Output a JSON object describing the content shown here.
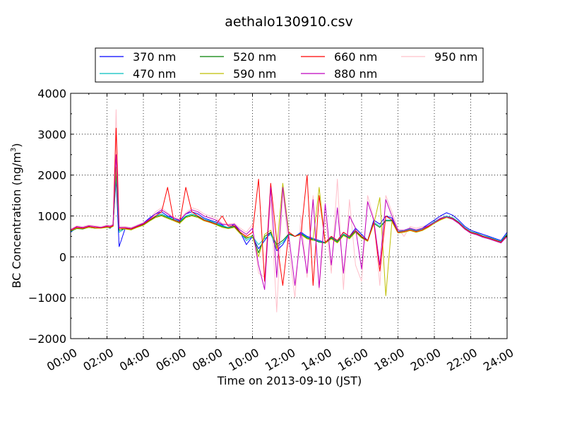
{
  "chart_data": {
    "type": "line",
    "title": "aethalo130910.csv",
    "xlabel": "Time on 2013-09-10 (JST)",
    "ylabel_main": "BC Concentration (ng/m",
    "ylabel_sup": "3",
    "ylabel_close": ")",
    "xlim": [
      "00:00",
      "24:00"
    ],
    "ylim": [
      -2000,
      4000
    ],
    "x_ticks": [
      "00:00",
      "02:00",
      "04:00",
      "06:00",
      "08:00",
      "10:00",
      "12:00",
      "14:00",
      "16:00",
      "18:00",
      "20:00",
      "22:00",
      "24:00"
    ],
    "y_ticks": [
      "4000",
      "3000",
      "2000",
      "1000",
      "0",
      "−1000",
      "−2000"
    ],
    "grid": true,
    "legend_position": "top",
    "x": [
      "00:00",
      "00:20",
      "00:40",
      "01:00",
      "01:20",
      "01:40",
      "02:00",
      "02:10",
      "02:20",
      "02:30",
      "02:40",
      "03:00",
      "03:20",
      "03:40",
      "04:00",
      "04:20",
      "04:40",
      "05:00",
      "05:20",
      "05:40",
      "06:00",
      "06:20",
      "06:40",
      "07:00",
      "07:20",
      "07:40",
      "08:00",
      "08:20",
      "08:40",
      "09:00",
      "09:20",
      "09:40",
      "10:00",
      "10:20",
      "10:40",
      "11:00",
      "11:20",
      "11:40",
      "12:00",
      "12:20",
      "12:40",
      "13:00",
      "13:20",
      "13:40",
      "14:00",
      "14:20",
      "14:40",
      "15:00",
      "15:20",
      "15:40",
      "16:00",
      "16:20",
      "16:40",
      "17:00",
      "17:20",
      "17:40",
      "18:00",
      "18:20",
      "18:40",
      "19:00",
      "19:20",
      "19:40",
      "20:00",
      "20:20",
      "20:40",
      "21:00",
      "21:20",
      "21:40",
      "22:00",
      "22:20",
      "22:40",
      "23:00",
      "23:20",
      "23:40",
      "24:00"
    ],
    "series": [
      {
        "name": "370 nm",
        "color": "#0000ff",
        "values": [
          600,
          720,
          700,
          740,
          700,
          720,
          740,
          700,
          760,
          1900,
          250,
          700,
          680,
          760,
          820,
          950,
          1050,
          1100,
          1000,
          950,
          880,
          1050,
          1100,
          1050,
          950,
          900,
          850,
          780,
          700,
          800,
          600,
          300,
          500,
          200,
          400,
          600,
          150,
          300,
          550,
          500,
          600,
          500,
          450,
          400,
          350,
          500,
          400,
          600,
          500,
          700,
          550,
          400,
          900,
          800,
          1000,
          950,
          600,
          650,
          700,
          650,
          700,
          800,
          900,
          1000,
          1080,
          1020,
          900,
          750,
          650,
          600,
          550,
          500,
          450,
          400,
          600
        ]
      },
      {
        "name": "470 nm",
        "color": "#00bfbf",
        "values": [
          620,
          700,
          690,
          730,
          710,
          720,
          730,
          720,
          760,
          2000,
          600,
          700,
          670,
          740,
          800,
          900,
          1000,
          1050,
          980,
          920,
          860,
          1000,
          1050,
          1000,
          920,
          880,
          820,
          760,
          720,
          760,
          600,
          400,
          500,
          300,
          450,
          550,
          250,
          350,
          550,
          500,
          580,
          480,
          430,
          380,
          350,
          480,
          380,
          560,
          480,
          650,
          500,
          400,
          850,
          750,
          900,
          900,
          620,
          640,
          680,
          640,
          680,
          760,
          860,
          940,
          1000,
          960,
          860,
          720,
          620,
          580,
          520,
          480,
          430,
          380,
          560
        ]
      },
      {
        "name": "520 nm",
        "color": "#007f00",
        "values": [
          630,
          690,
          680,
          720,
          700,
          710,
          720,
          710,
          750,
          2100,
          650,
          690,
          660,
          730,
          780,
          880,
          980,
          1020,
          960,
          900,
          840,
          980,
          1020,
          980,
          900,
          860,
          800,
          740,
          700,
          740,
          580,
          450,
          520,
          100,
          500,
          600,
          300,
          400,
          560,
          500,
          560,
          460,
          420,
          360,
          340,
          460,
          360,
          540,
          460,
          620,
          480,
          390,
          820,
          720,
          880,
          880,
          600,
          620,
          660,
          620,
          660,
          740,
          840,
          920,
          980,
          940,
          840,
          700,
          600,
          560,
          500,
          460,
          410,
          360,
          540
        ]
      },
      {
        "name": "590 nm",
        "color": "#bfbf00",
        "values": [
          640,
          700,
          690,
          720,
          700,
          700,
          720,
          720,
          740,
          2200,
          700,
          680,
          660,
          720,
          770,
          870,
          960,
          1000,
          940,
          880,
          820,
          960,
          1000,
          960,
          880,
          840,
          780,
          720,
          690,
          720,
          560,
          480,
          500,
          0,
          550,
          650,
          200,
          1800,
          600,
          500,
          540,
          440,
          400,
          1700,
          330,
          440,
          340,
          520,
          440,
          600,
          460,
          380,
          800,
          1450,
          -950,
          860,
          580,
          600,
          640,
          600,
          640,
          720,
          820,
          900,
          960,
          920,
          820,
          680,
          580,
          540,
          480,
          440,
          390,
          340,
          520
        ]
      },
      {
        "name": "660 nm",
        "color": "#ff0000",
        "values": [
          650,
          720,
          700,
          740,
          720,
          710,
          740,
          730,
          760,
          3150,
          700,
          700,
          680,
          740,
          800,
          900,
          1000,
          1100,
          1700,
          900,
          850,
          1700,
          1100,
          1000,
          900,
          850,
          800,
          1000,
          750,
          760,
          600,
          500,
          600,
          1900,
          -600,
          1800,
          400,
          -700,
          600,
          500,
          560,
          2000,
          -700,
          1500,
          350,
          500,
          400,
          600,
          500,
          650,
          500,
          400,
          850,
          -350,
          1000,
          900,
          600,
          620,
          660,
          620,
          660,
          740,
          840,
          920,
          980,
          940,
          840,
          700,
          600,
          560,
          500,
          460,
          410,
          360,
          520
        ]
      },
      {
        "name": "880 nm",
        "color": "#bf00bf",
        "values": [
          660,
          740,
          720,
          760,
          740,
          720,
          760,
          750,
          780,
          2500,
          720,
          720,
          700,
          760,
          820,
          920,
          1050,
          1150,
          1050,
          950,
          900,
          1050,
          1150,
          1100,
          1000,
          950,
          900,
          800,
          780,
          800,
          650,
          550,
          700,
          -200,
          -800,
          1700,
          -500,
          1700,
          500,
          -700,
          600,
          -400,
          1400,
          -750,
          1300,
          -200,
          1200,
          -400,
          1000,
          700,
          -300,
          1350,
          900,
          -200,
          1400,
          1000,
          650,
          650,
          700,
          660,
          700,
          760,
          840,
          940,
          980,
          920,
          820,
          680,
          580,
          540,
          480,
          440,
          390,
          340,
          500
        ]
      },
      {
        "name": "950 nm",
        "color": "#ffc0cb",
        "values": [
          680,
          760,
          740,
          780,
          760,
          740,
          780,
          770,
          800,
          3600,
          750,
          740,
          720,
          780,
          840,
          940,
          1100,
          1200,
          1080,
          980,
          920,
          1080,
          1200,
          1150,
          1050,
          1000,
          950,
          820,
          800,
          820,
          700,
          600,
          800,
          -400,
          -500,
          1400,
          -1350,
          1600,
          200,
          -1000,
          1000,
          -500,
          1500,
          -800,
          1000,
          -400,
          1900,
          -800,
          1400,
          -200,
          -600,
          1500,
          950,
          -700,
          1500,
          1100,
          700,
          500,
          740,
          700,
          740,
          780,
          860,
          960,
          1000,
          940,
          840,
          700,
          600,
          560,
          500,
          460,
          410,
          360,
          480
        ]
      }
    ]
  }
}
